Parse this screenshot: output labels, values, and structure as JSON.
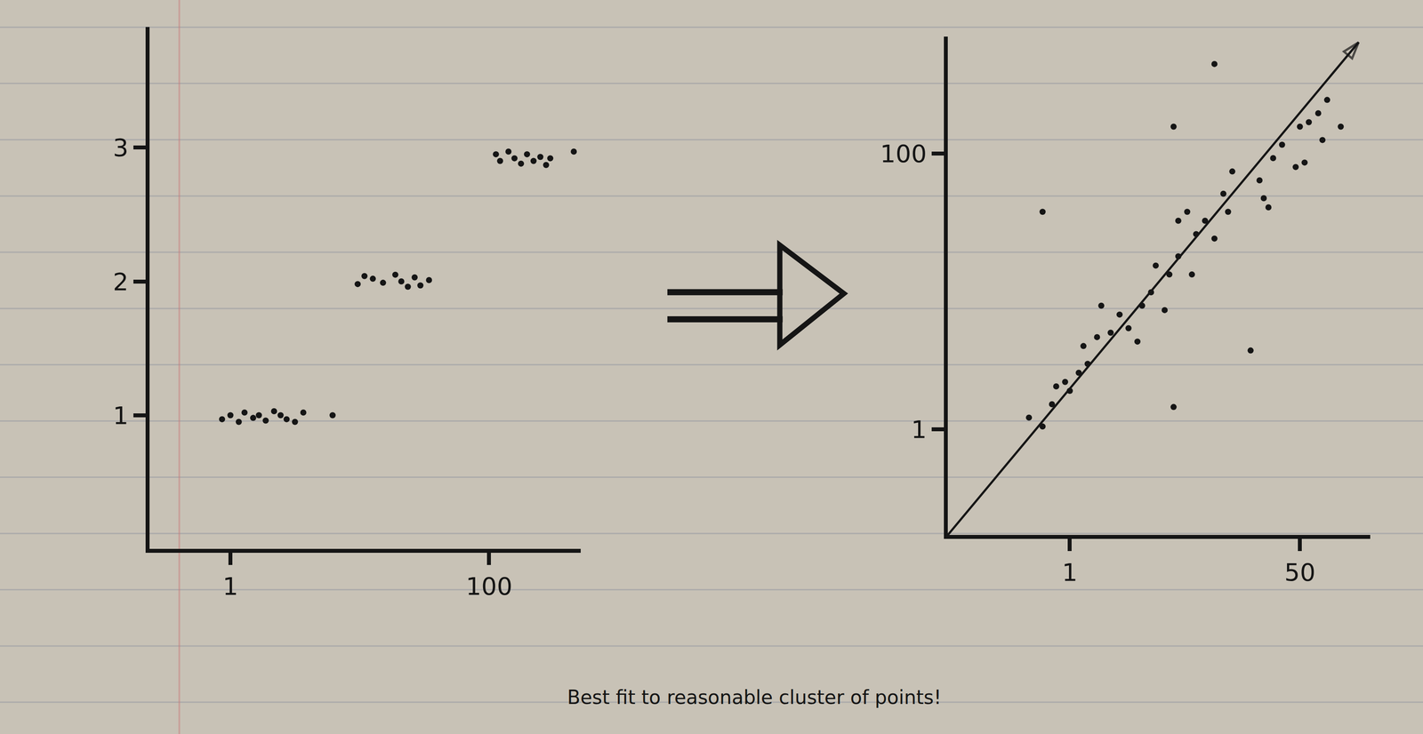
{
  "chart_data": [
    {
      "type": "scatter",
      "x": [
        -2.2,
        1,
        4.2,
        6.4,
        9.7,
        11.9,
        14.5,
        17.7,
        20.2,
        22.5,
        25.7,
        28.9,
        40.1,
        49.7,
        52.3,
        55.5,
        59.4,
        64.1,
        66.4,
        68.9,
        71.5,
        73.7,
        77.0,
        102.6,
        104.2,
        107.4,
        109.7,
        112.2,
        114.5,
        117.0,
        119.6,
        121.8,
        123.4,
        132.4
      ],
      "values": [
        0.97,
        1.0,
        0.95,
        1.02,
        0.98,
        1.0,
        0.96,
        1.03,
        1.0,
        0.97,
        0.95,
        1.02,
        1.0,
        1.98,
        2.04,
        2.02,
        1.99,
        2.05,
        2.0,
        1.96,
        2.03,
        1.97,
        2.01,
        2.95,
        2.9,
        2.97,
        2.92,
        2.88,
        2.95,
        2.9,
        2.93,
        2.87,
        2.92,
        2.97
      ],
      "color": "#151515",
      "marker": "circle",
      "xlim": [
        -30,
        135
      ],
      "ylim": [
        0,
        3.9
      ],
      "xticks": [
        1,
        100
      ],
      "yticks": [
        1,
        2,
        3
      ],
      "grid": false
    },
    {
      "type": "scatter",
      "series": [
        {
          "type": "scatter",
          "color": "#151515",
          "marker": "circle",
          "x": [
            -4.8,
            31.8,
            23.1,
            39.5,
            23.1,
            -7.7,
            -4.8,
            -2.8,
            -1.9,
            0.0,
            1.0,
            2.9,
            3.9,
            4.8,
            6.8,
            7.7,
            9.7,
            11.6,
            13.5,
            15.4,
            16.4,
            18.3,
            19.3,
            21.2,
            22.2,
            24.1,
            24.1,
            26.0,
            27.0,
            27.9,
            29.8,
            31.8,
            33.7,
            34.7,
            35.6,
            41.4,
            42.3,
            43.3,
            44.3,
            46.2,
            49.1,
            50.0,
            51.0,
            51.9,
            53.9,
            54.8,
            55.8,
            58.7
          ],
          "values": [
            79.1,
            132.2,
            109.7,
            29.3,
            9.0,
            5.2,
            2.0,
            10.0,
            16.4,
            18.0,
            14.8,
            21.3,
            30.9,
            24.5,
            34.1,
            45.4,
            35.7,
            42.2,
            37.3,
            32.5,
            45.4,
            50.2,
            59.8,
            43.8,
            56.6,
            63.1,
            75.9,
            79.1,
            56.6,
            71.1,
            75.9,
            69.5,
            85.6,
            79.1,
            93.6,
            90.4,
            84.0,
            80.7,
            98.4,
            103.2,
            95.2,
            109.7,
            96.8,
            111.3,
            114.5,
            104.9,
            119.3,
            109.7
          ]
        },
        {
          "type": "line",
          "color": "#151515",
          "marker": "arrow",
          "line_style": "solid",
          "x": [
            -25,
            62.5
          ],
          "values": [
            -37,
            140
          ]
        }
      ],
      "xlim": [
        -25,
        65
      ],
      "ylim": [
        -37,
        142
      ],
      "xticks": [
        1,
        50
      ],
      "yticks": [
        1,
        100
      ],
      "grid": false
    }
  ],
  "caption": "Best fit to reasonable cluster of points!"
}
